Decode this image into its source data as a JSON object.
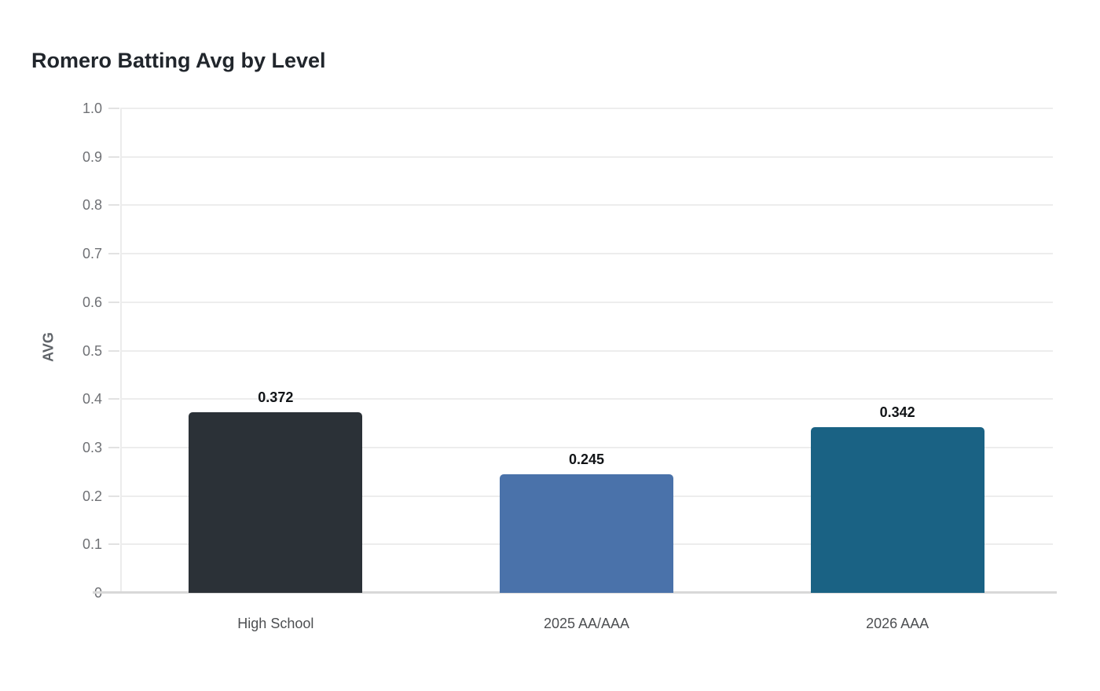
{
  "chart_data": {
    "type": "bar",
    "title": "Romero Batting Avg by Level",
    "xlabel": "",
    "ylabel": "AVG",
    "categories": [
      "High School",
      "2025 AA/AAA",
      "2026 AAA"
    ],
    "values": [
      0.372,
      0.245,
      0.342
    ],
    "value_labels": [
      "0.372",
      "0.245",
      "0.342"
    ],
    "bar_colors": [
      "#2b3137",
      "#4a72aa",
      "#1a6284"
    ],
    "ylim": [
      0,
      1.0
    ],
    "yticks": [
      0,
      0.1,
      0.2,
      0.3,
      0.4,
      0.5,
      0.6,
      0.7,
      0.8,
      0.9,
      1.0
    ],
    "ytick_labels": [
      "0",
      "0.1",
      "0.2",
      "0.3",
      "0.4",
      "0.5",
      "0.6",
      "0.7",
      "0.8",
      "0.9",
      "1.0"
    ],
    "grid": true,
    "legend_position": "none",
    "background_color": "#ffffff"
  }
}
